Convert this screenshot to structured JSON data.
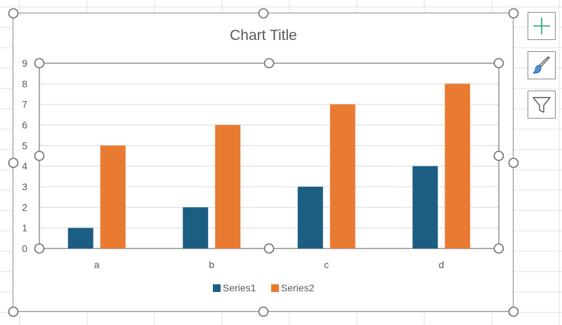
{
  "chart_data": {
    "type": "bar",
    "title": "Chart Title",
    "categories": [
      "a",
      "b",
      "c",
      "d"
    ],
    "series": [
      {
        "name": "Series1",
        "values": [
          1,
          2,
          3,
          4
        ],
        "color": "#1b5e82"
      },
      {
        "name": "Series2",
        "values": [
          5,
          6,
          7,
          8
        ],
        "color": "#e97a32"
      }
    ],
    "xlabel": "",
    "ylabel": "",
    "ylim": [
      0,
      9
    ],
    "yticks": [
      "0",
      "1",
      "2",
      "3",
      "4",
      "5",
      "6",
      "7",
      "8",
      "9"
    ],
    "grid": true,
    "legend": "bottom"
  },
  "side_buttons": [
    {
      "name": "chart-elements-button",
      "icon": "plus-icon"
    },
    {
      "name": "chart-styles-button",
      "icon": "paintbrush-icon"
    },
    {
      "name": "chart-filters-button",
      "icon": "funnel-icon"
    }
  ],
  "colors": {
    "grid": "#d9d9d9",
    "sheet_grid": "#e1e1e1",
    "axis_text": "#595959",
    "handle_stroke": "#6e6e6e",
    "plus_green": "#21a366",
    "brush_blue": "#4a90d9"
  }
}
